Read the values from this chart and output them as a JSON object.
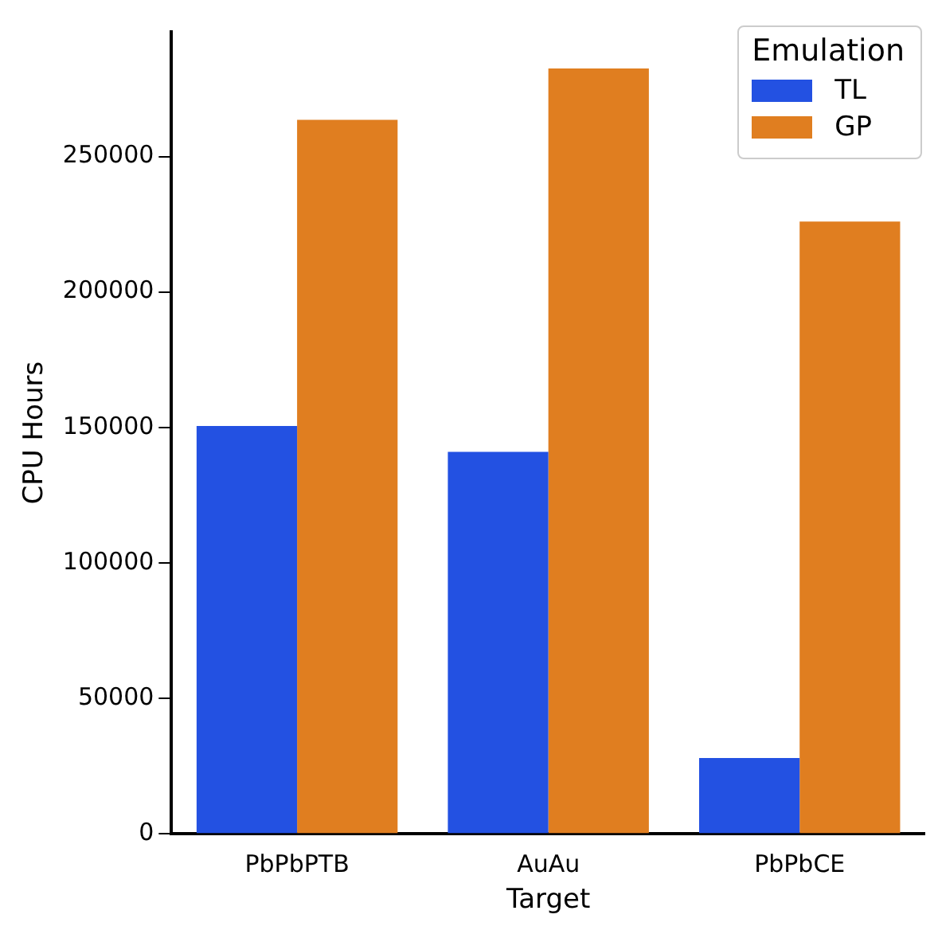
{
  "chart_data": {
    "type": "bar",
    "xlabel": "Target",
    "ylabel": "CPU Hours",
    "legend_title": "Emulation",
    "legend": "top right",
    "grid": false,
    "categories": [
      "PbPbPTB",
      "AuAu",
      "PbPbCE"
    ],
    "series": [
      {
        "name": "TL",
        "color": "#2351e2",
        "values": [
          150500,
          141000,
          28000
        ]
      },
      {
        "name": "GP",
        "color": "#e07e20",
        "values": [
          263500,
          282500,
          226000
        ]
      }
    ],
    "ylim": [
      0,
      296000
    ],
    "yticks": [
      0,
      50000,
      100000,
      150000,
      200000,
      250000
    ]
  }
}
